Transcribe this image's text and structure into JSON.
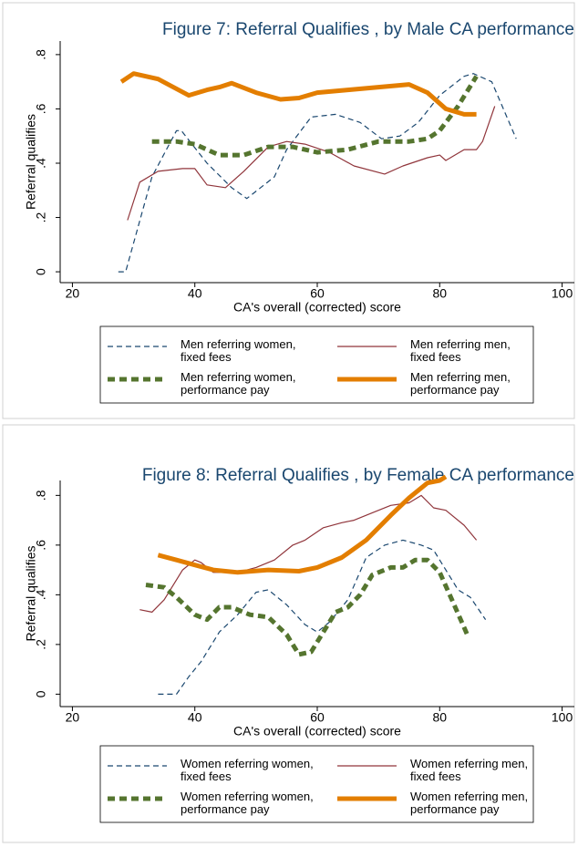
{
  "chart_data": [
    {
      "type": "line",
      "title": "Figure 7: Referral Qualifies , by Male CA performance",
      "xlabel": "CA's overall (corrected) score",
      "ylabel": "Referral qualifies",
      "xlim": [
        18,
        102
      ],
      "xticks": [
        20,
        40,
        60,
        80,
        100
      ],
      "ylim": [
        -0.04,
        0.85
      ],
      "yticks": [
        0,
        {
          "value": 0.2,
          "label": ".2"
        },
        {
          "value": 0.4,
          "label": ".4"
        },
        {
          "value": 0.6,
          "label": ".6"
        },
        {
          "value": 0.8,
          "label": ".8"
        }
      ],
      "series": [
        {
          "name": "Men referring women, fixed fees",
          "color": "#1a476f",
          "style": "dash",
          "x": [
            27.5,
            28.7,
            33,
            37,
            37.8,
            42,
            46,
            48.5,
            53,
            55,
            59,
            63,
            67,
            70.5,
            73.5,
            76.5,
            80,
            84,
            85.5,
            88.5,
            92.5
          ],
          "values": [
            0,
            0,
            0.35,
            0.52,
            0.52,
            0.4,
            0.31,
            0.27,
            0.35,
            0.45,
            0.57,
            0.58,
            0.55,
            0.49,
            0.5,
            0.55,
            0.65,
            0.72,
            0.73,
            0.7,
            0.49
          ]
        },
        {
          "name": "Men referring men, fixed fees",
          "color": "#90353b",
          "style": "thin",
          "x": [
            29,
            31,
            34,
            38,
            40,
            42,
            45,
            48,
            52,
            55,
            58,
            62,
            66,
            71,
            74,
            78,
            80,
            81,
            84,
            86,
            87,
            89
          ],
          "values": [
            0.19,
            0.33,
            0.37,
            0.38,
            0.38,
            0.32,
            0.31,
            0.37,
            0.46,
            0.48,
            0.47,
            0.44,
            0.39,
            0.36,
            0.39,
            0.42,
            0.43,
            0.41,
            0.45,
            0.45,
            0.48,
            0.61
          ]
        },
        {
          "name": "Men referring women, performance pay",
          "color": "#55752f",
          "style": "thickdash",
          "x": [
            33,
            37,
            40,
            44,
            48,
            52,
            56,
            60,
            65,
            70,
            75,
            78,
            80,
            83,
            86
          ],
          "values": [
            0.48,
            0.48,
            0.47,
            0.43,
            0.43,
            0.46,
            0.46,
            0.44,
            0.45,
            0.48,
            0.48,
            0.49,
            0.52,
            0.61,
            0.72
          ]
        },
        {
          "name": "Men referring men, performance pay",
          "color": "#e37e00",
          "style": "thick",
          "x": [
            28,
            30,
            34,
            39,
            42,
            44,
            46,
            50,
            54,
            57,
            60,
            65,
            70,
            75,
            78,
            81,
            84,
            86
          ],
          "values": [
            0.7,
            0.73,
            0.71,
            0.65,
            0.67,
            0.68,
            0.695,
            0.66,
            0.635,
            0.64,
            0.66,
            0.67,
            0.68,
            0.69,
            0.66,
            0.6,
            0.58,
            0.58
          ]
        }
      ]
    },
    {
      "type": "line",
      "title": "Figure 8: Referral Qualifies , by Female CA performance",
      "xlabel": "CA's overall (corrected) score",
      "ylabel": "Referral qualifies",
      "xlim": [
        18,
        102
      ],
      "xticks": [
        20,
        40,
        60,
        80,
        100
      ],
      "ylim": [
        -0.05,
        0.86
      ],
      "yticks": [
        0,
        {
          "value": 0.2,
          "label": ".2"
        },
        {
          "value": 0.4,
          "label": ".4"
        },
        {
          "value": 0.6,
          "label": ".6"
        },
        {
          "value": 0.8,
          "label": ".8"
        }
      ],
      "series": [
        {
          "name": "Women referring women, fixed fees",
          "color": "#1a476f",
          "style": "dash",
          "x": [
            34,
            37,
            39,
            41,
            44,
            47,
            50,
            52,
            55,
            58,
            60,
            62,
            65,
            68,
            71,
            74,
            77,
            79,
            81,
            83,
            85,
            87.5
          ],
          "values": [
            0,
            0,
            0.07,
            0.13,
            0.25,
            0.32,
            0.41,
            0.42,
            0.36,
            0.28,
            0.25,
            0.29,
            0.38,
            0.55,
            0.6,
            0.62,
            0.6,
            0.58,
            0.5,
            0.42,
            0.39,
            0.3
          ]
        },
        {
          "name": "Women referring men, fixed fees",
          "color": "#90353b",
          "style": "thin",
          "x": [
            31,
            33,
            35,
            38,
            40,
            41,
            43,
            47,
            50,
            53,
            56,
            58,
            61,
            64,
            66,
            69,
            72,
            75,
            77,
            79,
            81,
            84,
            86
          ],
          "values": [
            0.34,
            0.33,
            0.38,
            0.5,
            0.54,
            0.53,
            0.49,
            0.49,
            0.51,
            0.54,
            0.6,
            0.62,
            0.67,
            0.69,
            0.7,
            0.73,
            0.76,
            0.77,
            0.8,
            0.75,
            0.74,
            0.68,
            0.62
          ]
        },
        {
          "name": "Women referring women, performance pay",
          "color": "#55752f",
          "style": "thickdash",
          "x": [
            32,
            35,
            37,
            40,
            42,
            44,
            46,
            49,
            52,
            55,
            57,
            59,
            61,
            63,
            65,
            67,
            69,
            72,
            74,
            76,
            78,
            80,
            82,
            84.5
          ],
          "values": [
            0.44,
            0.43,
            0.39,
            0.32,
            0.3,
            0.35,
            0.35,
            0.32,
            0.31,
            0.24,
            0.16,
            0.17,
            0.25,
            0.33,
            0.35,
            0.4,
            0.48,
            0.51,
            0.51,
            0.54,
            0.54,
            0.49,
            0.38,
            0.24
          ]
        },
        {
          "name": "Women referring men, performance pay",
          "color": "#e37e00",
          "style": "thick",
          "x": [
            34,
            37,
            40,
            43,
            47,
            52,
            57,
            60,
            64,
            68,
            72,
            75,
            78,
            80,
            81
          ],
          "values": [
            0.56,
            0.54,
            0.52,
            0.5,
            0.49,
            0.5,
            0.495,
            0.51,
            0.55,
            0.62,
            0.72,
            0.79,
            0.85,
            0.86,
            0.875
          ]
        }
      ]
    }
  ]
}
